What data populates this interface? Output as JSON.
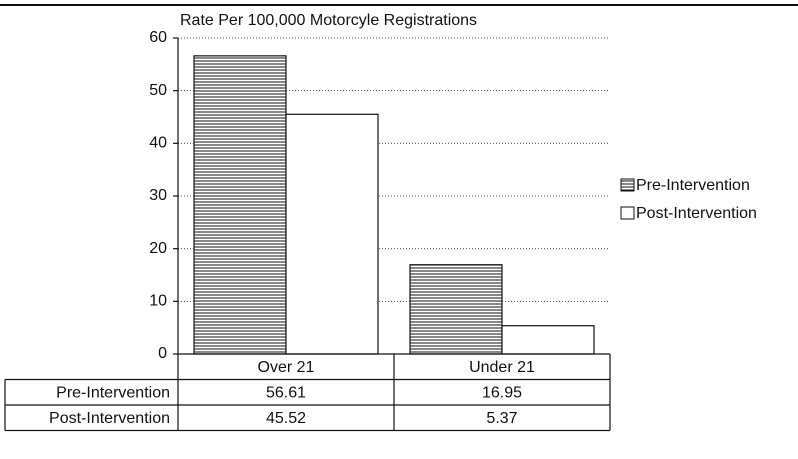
{
  "chart_data": {
    "type": "bar",
    "title": "Rate Per 100,000 Motorcyle Registrations",
    "categories": [
      "Over 21",
      "Under 21"
    ],
    "series": [
      {
        "name": "Pre-Intervention",
        "color": "#ffffff",
        "hatch": "horizontal",
        "values": [
          56.61,
          16.95
        ]
      },
      {
        "name": "Post-Intervention",
        "color": "#ffffff",
        "values": [
          45.52,
          5.37
        ]
      }
    ],
    "ylim": [
      0,
      60
    ],
    "yticks": [
      0,
      10,
      20,
      30,
      40,
      50,
      60
    ],
    "grid": true,
    "legend": "right",
    "data_table": true
  }
}
